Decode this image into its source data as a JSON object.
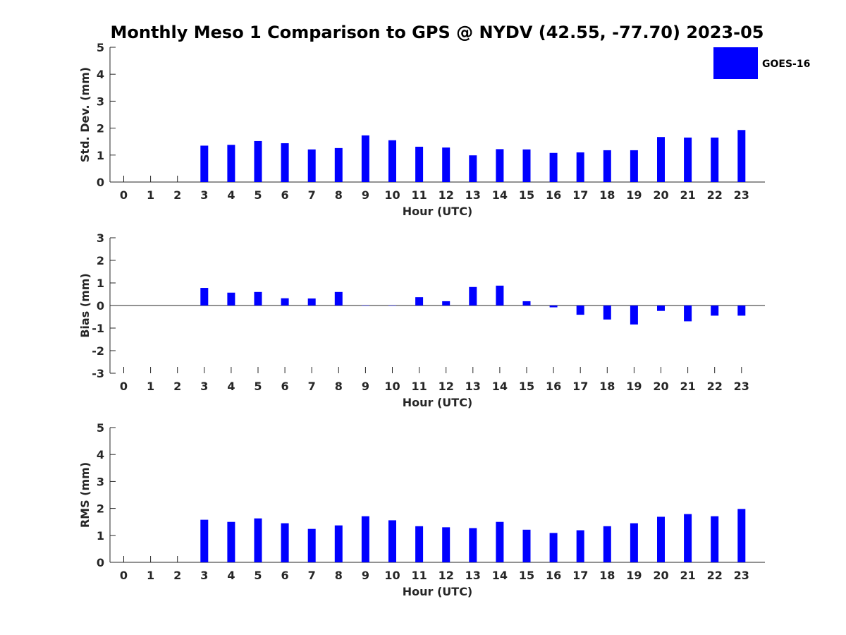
{
  "figure": {
    "title": "Monthly Meso 1 Comparison to GPS @ NYDV (42.55, -77.70) 2023-05"
  },
  "legend": {
    "label": "GOES-16",
    "color": "#0000ff",
    "placement": "top-right"
  },
  "chart_data": [
    {
      "type": "bar",
      "ylabel": "Std. Dev. (mm)",
      "xlabel": "Hour (UTC)",
      "ylim": [
        0,
        5
      ],
      "yticks": [
        "0",
        "1",
        "2",
        "3",
        "4",
        "5"
      ],
      "categories": [
        "0",
        "1",
        "2",
        "3",
        "4",
        "5",
        "6",
        "7",
        "8",
        "9",
        "10",
        "11",
        "12",
        "13",
        "14",
        "15",
        "16",
        "17",
        "18",
        "19",
        "20",
        "21",
        "22",
        "23"
      ],
      "series": [
        {
          "name": "GOES-16",
          "color": "#0000ff",
          "values": [
            null,
            null,
            null,
            1.35,
            1.38,
            1.52,
            1.44,
            1.21,
            1.26,
            1.73,
            1.55,
            1.31,
            1.28,
            0.99,
            1.22,
            1.21,
            1.08,
            1.1,
            1.18,
            1.18,
            1.67,
            1.65,
            1.65,
            1.93
          ]
        }
      ],
      "grid": false
    },
    {
      "type": "bar",
      "ylabel": "Bias (mm)",
      "xlabel": "Hour (UTC)",
      "ylim": [
        -3,
        3
      ],
      "yticks": [
        "-3",
        "-2",
        "-1",
        "0",
        "1",
        "2",
        "3"
      ],
      "categories": [
        "0",
        "1",
        "2",
        "3",
        "4",
        "5",
        "6",
        "7",
        "8",
        "9",
        "10",
        "11",
        "12",
        "13",
        "14",
        "15",
        "16",
        "17",
        "18",
        "19",
        "20",
        "21",
        "22",
        "23"
      ],
      "series": [
        {
          "name": "GOES-16",
          "color": "#0000ff",
          "values": [
            null,
            null,
            null,
            0.78,
            0.57,
            0.6,
            0.32,
            0.31,
            0.6,
            0.0,
            0.0,
            0.37,
            0.19,
            0.82,
            0.88,
            0.19,
            -0.08,
            -0.41,
            -0.62,
            -0.84,
            -0.24,
            -0.7,
            -0.45,
            -0.45
          ]
        }
      ],
      "grid": false
    },
    {
      "type": "bar",
      "ylabel": "RMS (mm)",
      "xlabel": "Hour (UTC)",
      "ylim": [
        0,
        5
      ],
      "yticks": [
        "0",
        "1",
        "2",
        "3",
        "4",
        "5"
      ],
      "categories": [
        "0",
        "1",
        "2",
        "3",
        "4",
        "5",
        "6",
        "7",
        "8",
        "9",
        "10",
        "11",
        "12",
        "13",
        "14",
        "15",
        "16",
        "17",
        "18",
        "19",
        "20",
        "21",
        "22",
        "23"
      ],
      "series": [
        {
          "name": "GOES-16",
          "color": "#0000ff",
          "values": [
            null,
            null,
            null,
            1.58,
            1.5,
            1.63,
            1.45,
            1.24,
            1.37,
            1.71,
            1.56,
            1.34,
            1.3,
            1.27,
            1.5,
            1.21,
            1.09,
            1.19,
            1.34,
            1.45,
            1.69,
            1.79,
            1.71,
            1.98
          ]
        }
      ],
      "grid": false
    }
  ]
}
